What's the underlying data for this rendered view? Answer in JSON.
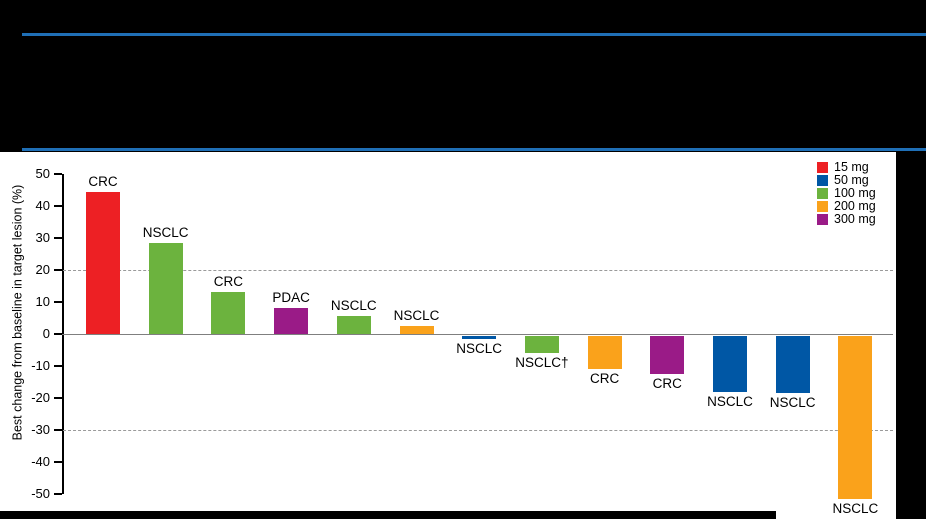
{
  "slide": {
    "background_color": "#000000",
    "divider_color": "#1f6fb6"
  },
  "chart_data": {
    "type": "bar",
    "subtype": "waterfall",
    "title": "",
    "ylabel": "Best change from baseline in target lesion (%)",
    "ylim": [
      -50,
      50
    ],
    "yticks": [
      50,
      40,
      30,
      20,
      10,
      0,
      -10,
      -20,
      -30,
      -40,
      -50
    ],
    "reference_lines": [
      20,
      -30
    ],
    "grid": "off",
    "legend_position": "top-right",
    "legend": [
      {
        "label": "15 mg",
        "color": "#ed2024"
      },
      {
        "label": "50 mg",
        "color": "#0057a5"
      },
      {
        "label": "100 mg",
        "color": "#6cb33e"
      },
      {
        "label": "200 mg",
        "color": "#faa21b"
      },
      {
        "label": "300 mg",
        "color": "#9a1b87"
      }
    ],
    "bars": [
      {
        "label": "CRC",
        "dose": "15 mg",
        "value": 44.5
      },
      {
        "label": "NSCLC",
        "dose": "100 mg",
        "value": 28.5
      },
      {
        "label": "CRC",
        "dose": "100 mg",
        "value": 13
      },
      {
        "label": "PDAC",
        "dose": "300 mg",
        "value": 8
      },
      {
        "label": "NSCLC",
        "dose": "100 mg",
        "value": 5.5
      },
      {
        "label": "NSCLC",
        "dose": "200 mg",
        "value": 2.5
      },
      {
        "label": "NSCLC",
        "dose": "50 mg",
        "value": -1
      },
      {
        "label": "NSCLC†",
        "dose": "100 mg",
        "value": -5.5
      },
      {
        "label": "CRC",
        "dose": "200 mg",
        "value": -10.5
      },
      {
        "label": "CRC",
        "dose": "300 mg",
        "value": -12
      },
      {
        "label": "NSCLC",
        "dose": "50 mg",
        "value": -17.5
      },
      {
        "label": "NSCLC",
        "dose": "50 mg",
        "value": -18
      },
      {
        "label": "NSCLC",
        "dose": "200 mg",
        "value": -51
      }
    ]
  }
}
